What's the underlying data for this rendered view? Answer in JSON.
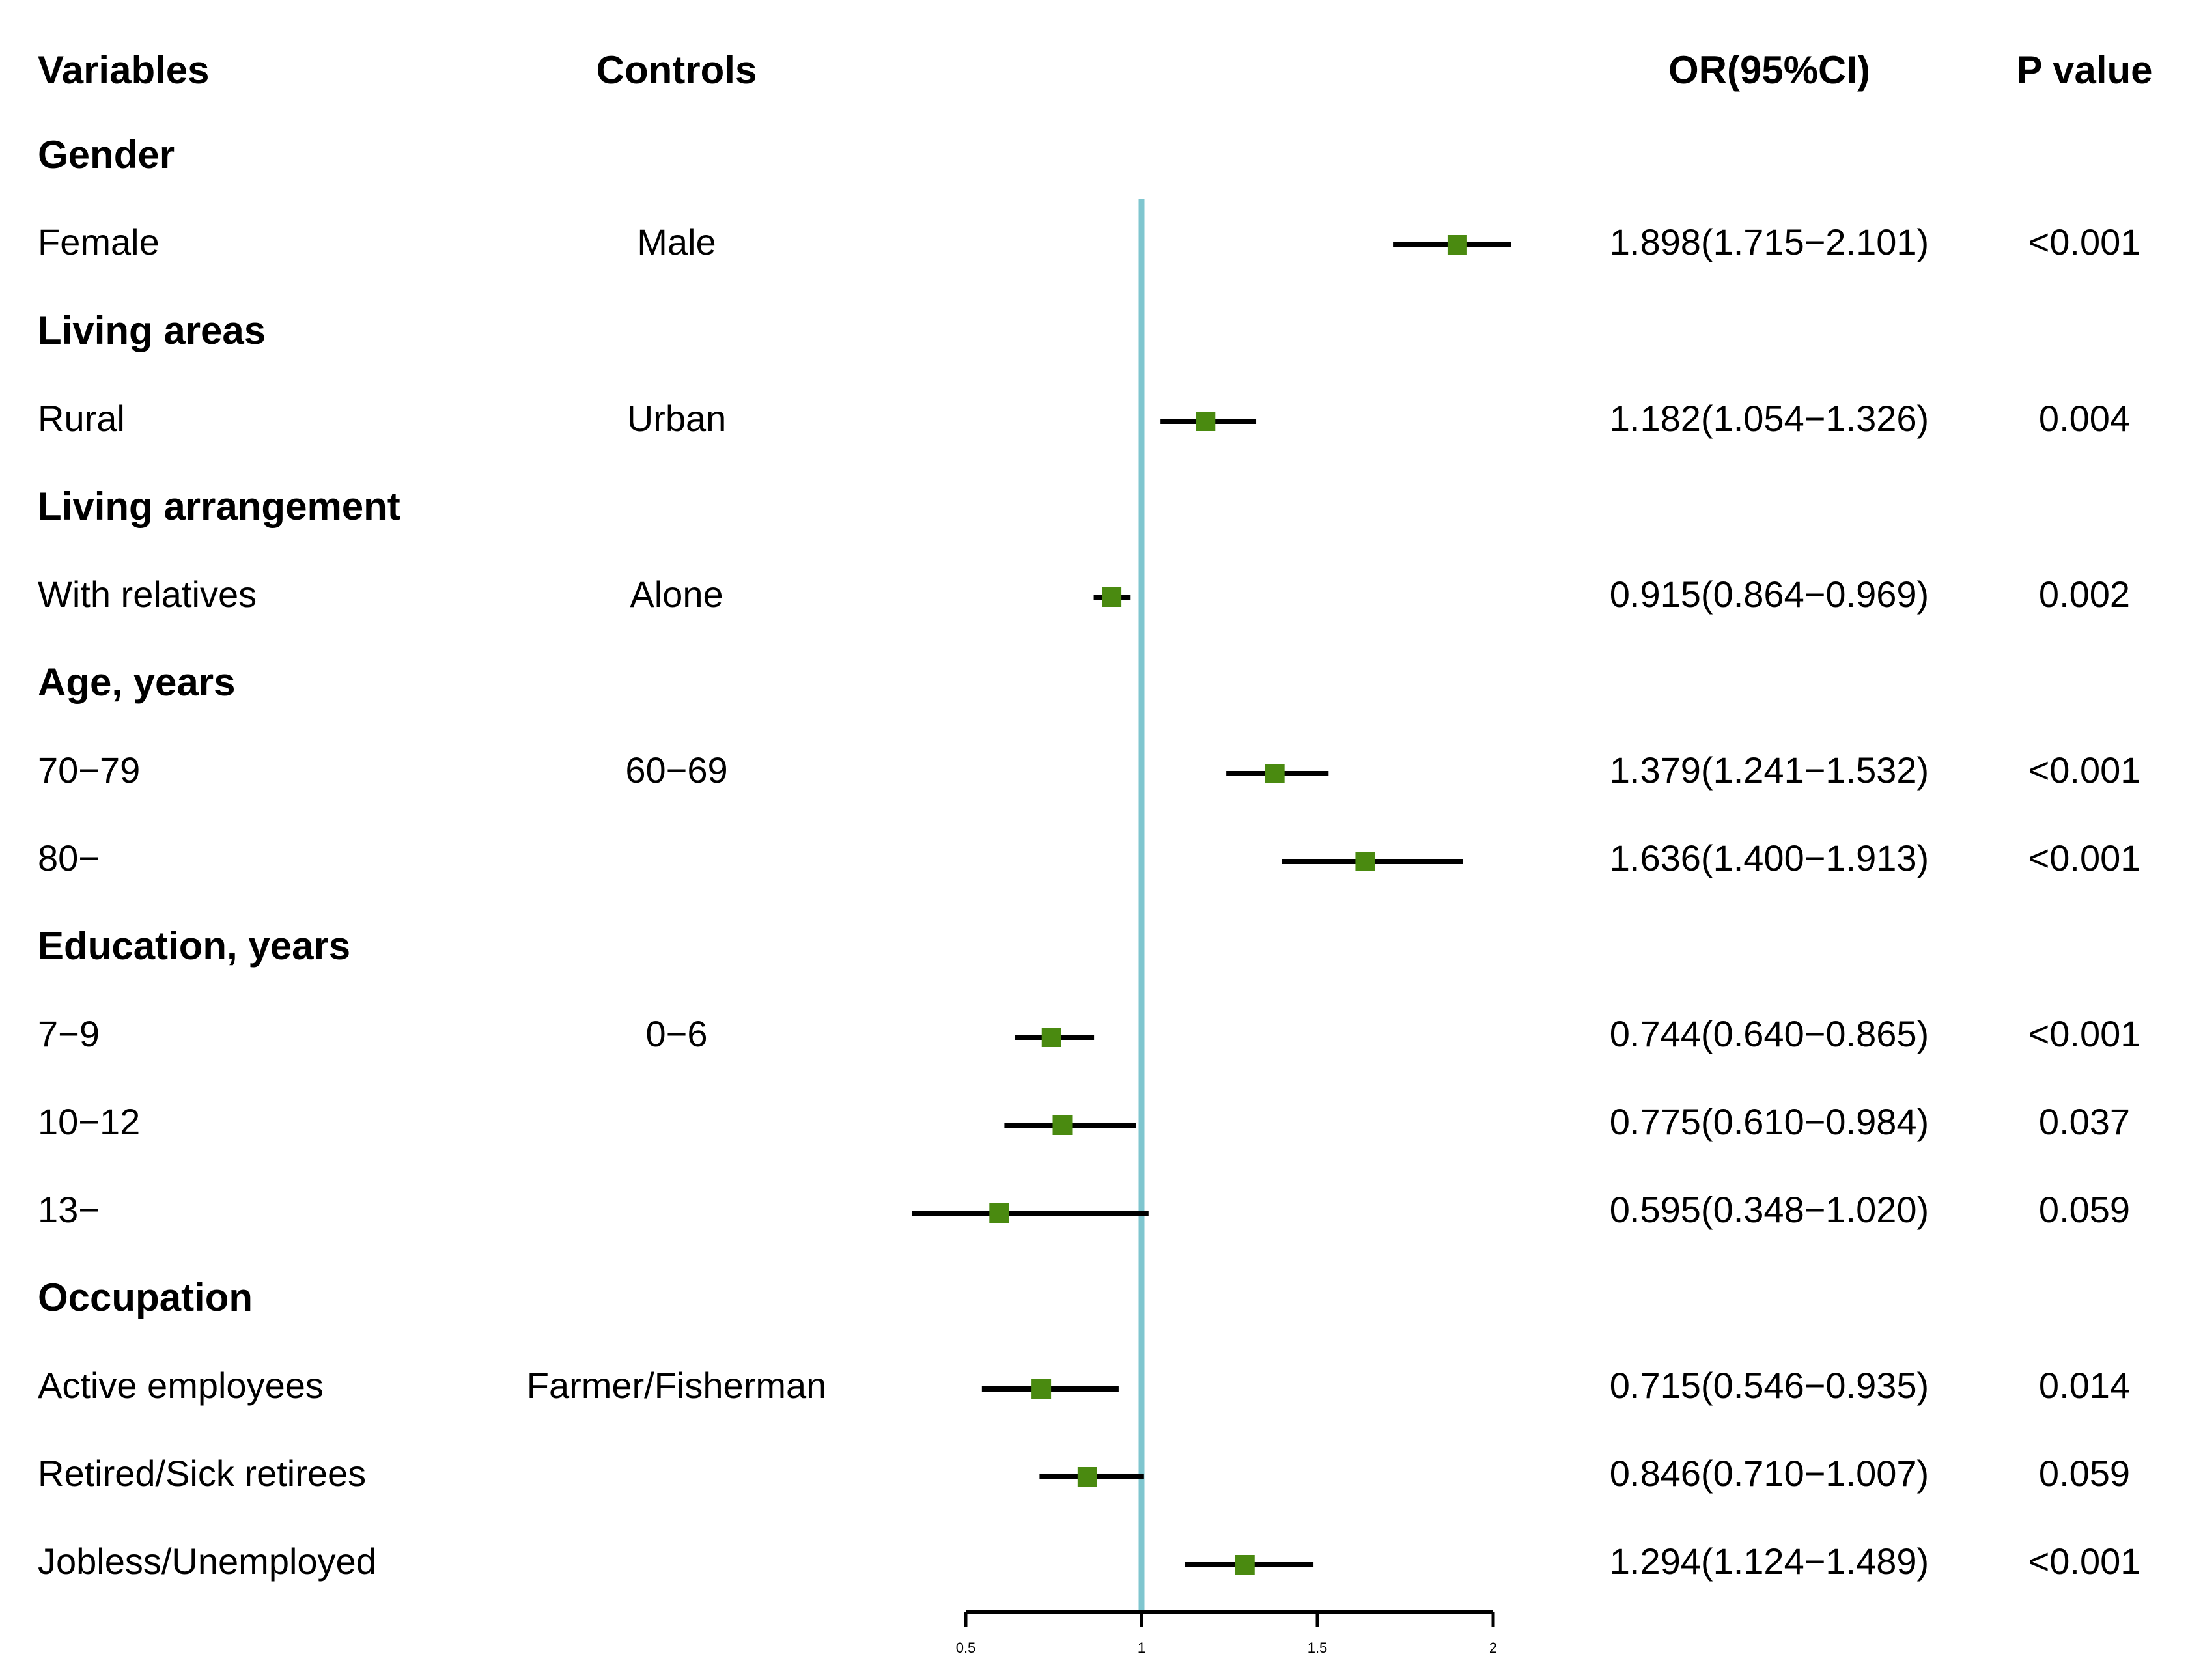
{
  "headers": {
    "variables": "Variables",
    "controls": "Controls",
    "or": "OR(95%CI)",
    "p": "P value"
  },
  "rows": [
    {
      "kind": "group",
      "label": "Gender"
    },
    {
      "kind": "item",
      "label": "Female",
      "control": "Male",
      "or_text": "1.898(1.715−2.101)",
      "p": "<0.001"
    },
    {
      "kind": "group",
      "label": "Living areas"
    },
    {
      "kind": "item",
      "label": "Rural",
      "control": "Urban",
      "or_text": "1.182(1.054−1.326)",
      "p": "0.004"
    },
    {
      "kind": "group",
      "label": "Living arrangement"
    },
    {
      "kind": "item",
      "label": "With relatives",
      "control": "Alone",
      "or_text": "0.915(0.864−0.969)",
      "p": "0.002"
    },
    {
      "kind": "group",
      "label": "Age, years"
    },
    {
      "kind": "item",
      "label": "70−79",
      "control": "60−69",
      "or_text": "1.379(1.241−1.532)",
      "p": "<0.001"
    },
    {
      "kind": "item",
      "label": "80−",
      "control": "",
      "or_text": "1.636(1.400−1.913)",
      "p": "<0.001"
    },
    {
      "kind": "group",
      "label": "Education, years"
    },
    {
      "kind": "item",
      "label": "7−9",
      "control": "0−6",
      "or_text": "0.744(0.640−0.865)",
      "p": "<0.001"
    },
    {
      "kind": "item",
      "label": "10−12",
      "control": "",
      "or_text": "0.775(0.610−0.984)",
      "p": "0.037"
    },
    {
      "kind": "item",
      "label": "13−",
      "control": "",
      "or_text": "0.595(0.348−1.020)",
      "p": "0.059"
    },
    {
      "kind": "group",
      "label": "Occupation"
    },
    {
      "kind": "item",
      "label": "Active employees",
      "control": "Farmer/Fisherman",
      "or_text": "0.715(0.546−0.935)",
      "p": "0.014"
    },
    {
      "kind": "item",
      "label": "Retired/Sick retirees",
      "control": "",
      "or_text": "0.846(0.710−1.007)",
      "p": "0.059"
    },
    {
      "kind": "item",
      "label": "Jobless/Unemployed",
      "control": "",
      "or_text": "1.294(1.124−1.489)",
      "p": "<0.001"
    }
  ],
  "chart_data": {
    "type": "forest",
    "title": "",
    "xlabel": "",
    "ylabel": "",
    "xlim": [
      0.5,
      2
    ],
    "xticks": [
      0.5,
      1,
      1.5,
      2
    ],
    "xtick_labels": [
      "0.5",
      "1",
      "1.5",
      "2"
    ],
    "reference_line": 1,
    "display_clip_upper": 2,
    "series": [
      {
        "name": "Female",
        "or": 1.898,
        "lower": 1.715,
        "upper": 2.101
      },
      {
        "name": "Rural",
        "or": 1.182,
        "lower": 1.054,
        "upper": 1.326
      },
      {
        "name": "With relatives",
        "or": 0.915,
        "lower": 0.864,
        "upper": 0.969
      },
      {
        "name": "70−79",
        "or": 1.379,
        "lower": 1.241,
        "upper": 1.532
      },
      {
        "name": "80−",
        "or": 1.636,
        "lower": 1.4,
        "upper": 1.913
      },
      {
        "name": "7−9",
        "or": 0.744,
        "lower": 0.64,
        "upper": 0.865
      },
      {
        "name": "10−12",
        "or": 0.775,
        "lower": 0.61,
        "upper": 0.984
      },
      {
        "name": "13−",
        "or": 0.595,
        "lower": 0.348,
        "upper": 1.02
      },
      {
        "name": "Active employees",
        "or": 0.715,
        "lower": 0.546,
        "upper": 0.935
      },
      {
        "name": "Retired/Sick retirees",
        "or": 0.846,
        "lower": 0.71,
        "upper": 1.007
      },
      {
        "name": "Jobless/Unemployed",
        "or": 1.294,
        "lower": 1.124,
        "upper": 1.489
      }
    ],
    "colors": {
      "marker": "#4a8a10",
      "reference": "#7fc6cf",
      "ci": "#000000"
    }
  }
}
